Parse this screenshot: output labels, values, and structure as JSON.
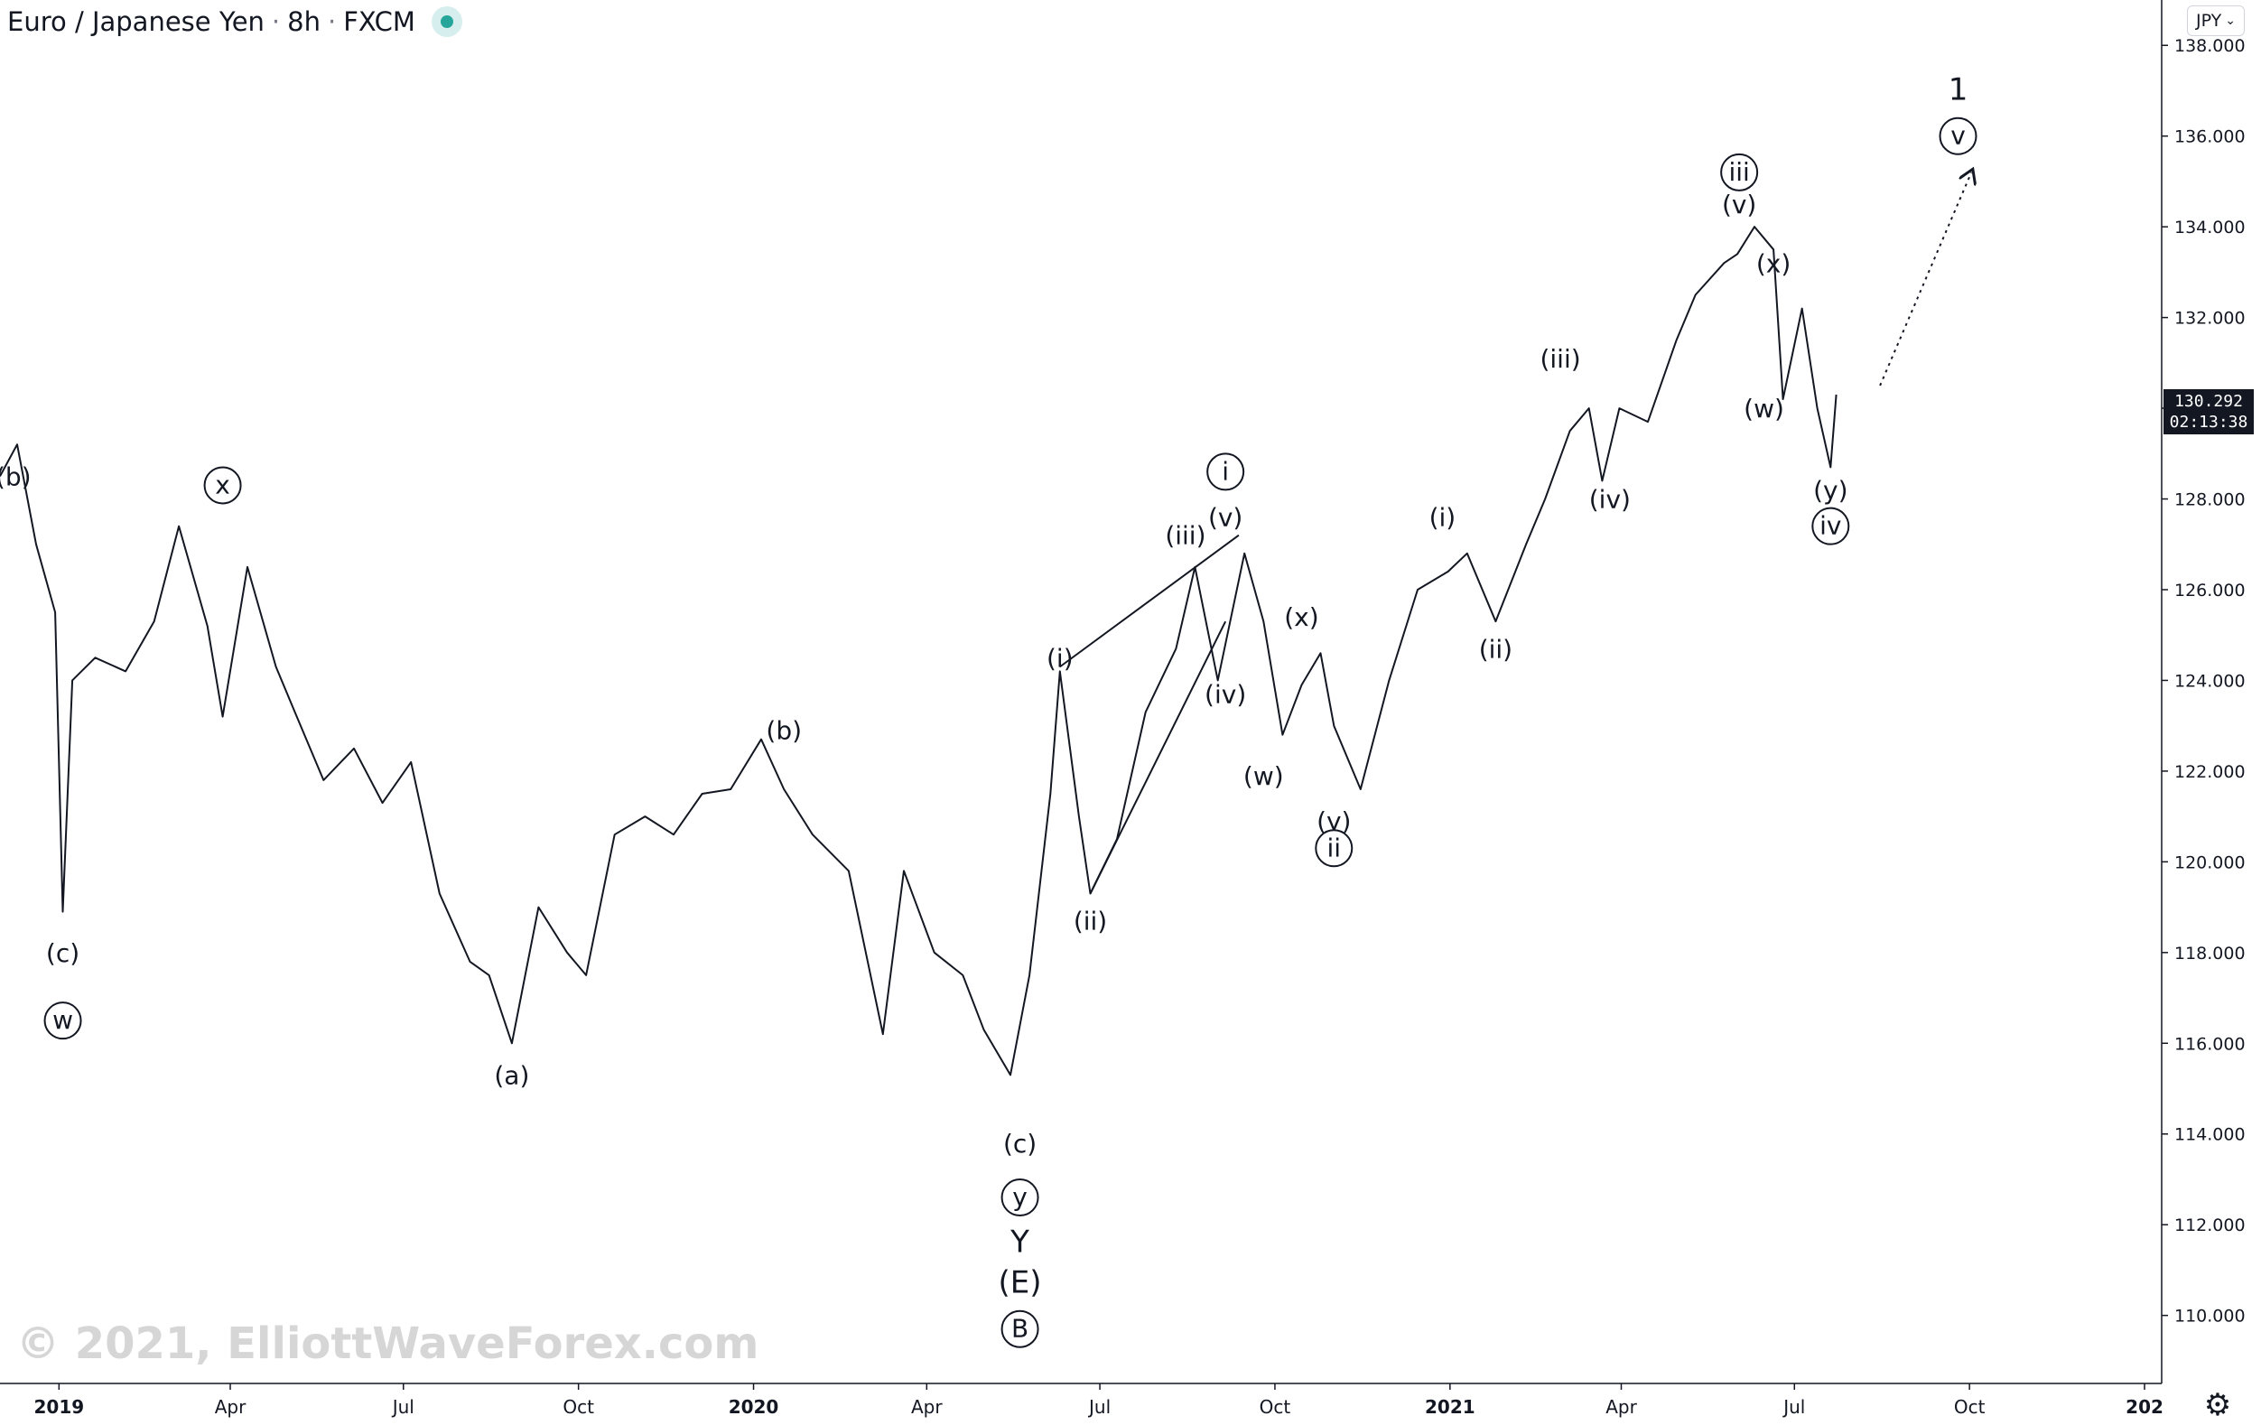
{
  "header": {
    "symbol": "Euro / Japanese Yen",
    "interval": "8h",
    "exchange": "FXCM",
    "separator": "·"
  },
  "currency_button": {
    "label": "JPY",
    "icon": "chevron-down-icon"
  },
  "price_label": {
    "price": "130.292",
    "countdown": "02:13:38"
  },
  "watermark": "© 2021, ElliottWaveForex.com",
  "settings_icon": "gear-icon",
  "colors": {
    "price_line": "#131722",
    "axis_text": "#131722",
    "watermark": "#d6d6d6",
    "live_dot": "#26a69a"
  },
  "chart_data": {
    "type": "line",
    "ylim": [
      108.5,
      139.0
    ],
    "xlim": [
      "2018-12-01",
      "2022-01-10"
    ],
    "y_ticks": [
      "110.000",
      "112.000",
      "114.000",
      "116.000",
      "118.000",
      "120.000",
      "122.000",
      "124.000",
      "126.000",
      "128.000",
      "130.000",
      "132.000",
      "134.000",
      "136.000",
      "138.000"
    ],
    "x_ticks": [
      {
        "date": "2019-01-01",
        "label": "2019"
      },
      {
        "date": "2019-04-01",
        "label": "Apr"
      },
      {
        "date": "2019-07-01",
        "label": "Jul"
      },
      {
        "date": "2019-10-01",
        "label": "Oct"
      },
      {
        "date": "2020-01-01",
        "label": "2020"
      },
      {
        "date": "2020-04-01",
        "label": "Apr"
      },
      {
        "date": "2020-07-01",
        "label": "Jul"
      },
      {
        "date": "2020-10-01",
        "label": "Oct"
      },
      {
        "date": "2021-01-01",
        "label": "2021"
      },
      {
        "date": "2021-04-01",
        "label": "Apr"
      },
      {
        "date": "2021-07-01",
        "label": "Jul"
      },
      {
        "date": "2021-10-01",
        "label": "Oct"
      },
      {
        "date": "2022-01-01",
        "label": "202"
      }
    ],
    "series": [
      {
        "x": [
          "2018-12-01",
          "2018-12-10",
          "2018-12-20",
          "2018-12-30",
          "2019-01-03",
          "2019-01-08",
          "2019-01-20",
          "2019-02-05",
          "2019-02-20",
          "2019-03-05",
          "2019-03-20",
          "2019-03-28",
          "2019-04-10",
          "2019-04-25",
          "2019-05-05",
          "2019-05-20",
          "2019-06-05",
          "2019-06-20",
          "2019-07-05",
          "2019-07-20",
          "2019-08-05",
          "2019-08-15",
          "2019-08-27",
          "2019-09-10",
          "2019-09-25",
          "2019-10-05",
          "2019-10-20",
          "2019-11-05",
          "2019-11-20",
          "2019-12-05",
          "2019-12-20",
          "2020-01-05",
          "2020-01-17",
          "2020-02-01",
          "2020-02-20",
          "2020-03-09",
          "2020-03-20",
          "2020-04-05",
          "2020-04-20",
          "2020-05-01",
          "2020-05-15",
          "2020-05-25",
          "2020-06-05",
          "2020-06-10",
          "2020-06-20",
          "2020-06-26",
          "2020-07-10",
          "2020-07-25",
          "2020-08-10",
          "2020-08-20",
          "2020-09-01",
          "2020-09-15",
          "2020-09-25",
          "2020-10-05",
          "2020-10-15",
          "2020-10-25",
          "2020-11-01",
          "2020-11-15",
          "2020-11-30",
          "2020-12-15",
          "2020-12-31",
          "2021-01-10",
          "2021-01-25",
          "2021-02-10",
          "2021-02-20",
          "2021-03-05",
          "2021-03-15",
          "2021-03-22",
          "2021-03-31",
          "2021-04-15",
          "2021-04-30",
          "2021-05-10",
          "2021-05-25",
          "2021-06-01",
          "2021-06-10",
          "2021-06-20",
          "2021-06-25",
          "2021-07-05",
          "2021-07-13",
          "2021-07-20",
          "2021-07-23"
        ],
        "values": [
          128.5,
          129.2,
          127.0,
          125.5,
          118.9,
          124.0,
          124.5,
          124.2,
          125.3,
          127.4,
          125.2,
          123.2,
          126.5,
          124.3,
          123.3,
          121.8,
          122.5,
          121.3,
          122.2,
          119.3,
          117.8,
          117.5,
          116.0,
          119.0,
          118.0,
          117.5,
          120.6,
          121.0,
          120.6,
          121.5,
          121.6,
          122.7,
          121.6,
          120.6,
          119.8,
          116.2,
          119.8,
          118.0,
          117.5,
          116.3,
          115.3,
          117.5,
          121.5,
          124.2,
          121.0,
          119.3,
          120.5,
          123.3,
          124.7,
          126.5,
          124.0,
          126.8,
          125.3,
          122.8,
          123.9,
          124.6,
          123.0,
          121.6,
          124.0,
          126.0,
          126.4,
          126.8,
          125.3,
          127.0,
          128.0,
          129.5,
          130.0,
          128.4,
          130.0,
          129.7,
          131.5,
          132.5,
          133.2,
          133.4,
          134.0,
          133.5,
          130.2,
          132.2,
          130.0,
          128.7,
          130.3
        ]
      }
    ],
    "annotations": [
      {
        "label": "(b)",
        "x": "2018-12-08",
        "y": 128.5,
        "style": "paren"
      },
      {
        "label": "(c)",
        "x": "2019-01-03",
        "y": 118.0,
        "style": "paren"
      },
      {
        "label": "w",
        "x": "2019-01-03",
        "y": 116.5,
        "style": "circle"
      },
      {
        "label": "x",
        "x": "2019-03-28",
        "y": 128.3,
        "style": "circle"
      },
      {
        "label": "(a)",
        "x": "2019-08-27",
        "y": 115.3,
        "style": "paren"
      },
      {
        "label": "(b)",
        "x": "2020-01-17",
        "y": 122.9,
        "style": "paren"
      },
      {
        "label": "(c)",
        "x": "2020-05-20",
        "y": 113.8,
        "style": "paren"
      },
      {
        "label": "y",
        "x": "2020-05-20",
        "y": 112.6,
        "style": "circle"
      },
      {
        "label": "Y",
        "x": "2020-05-20",
        "y": 111.6,
        "style": "plain"
      },
      {
        "label": "(E)",
        "x": "2020-05-20",
        "y": 110.7,
        "style": "paren-large"
      },
      {
        "label": "B",
        "x": "2020-05-20",
        "y": 109.7,
        "style": "circle"
      },
      {
        "label": "(i)",
        "x": "2020-06-10",
        "y": 124.5,
        "style": "paren"
      },
      {
        "label": "(ii)",
        "x": "2020-06-26",
        "y": 118.7,
        "style": "paren"
      },
      {
        "label": "(iii)",
        "x": "2020-08-15",
        "y": 127.2,
        "style": "paren"
      },
      {
        "label": "(iv)",
        "x": "2020-09-05",
        "y": 123.7,
        "style": "paren"
      },
      {
        "label": "(v)",
        "x": "2020-09-05",
        "y": 127.6,
        "style": "paren"
      },
      {
        "label": "i",
        "x": "2020-09-05",
        "y": 128.6,
        "style": "circle"
      },
      {
        "label": "(w)",
        "x": "2020-09-25",
        "y": 121.9,
        "style": "paren"
      },
      {
        "label": "(x)",
        "x": "2020-10-15",
        "y": 125.4,
        "style": "paren"
      },
      {
        "label": "(y)",
        "x": "2020-11-01",
        "y": 120.9,
        "style": "paren"
      },
      {
        "label": "ii",
        "x": "2020-11-01",
        "y": 120.3,
        "style": "circle"
      },
      {
        "label": "(i)",
        "x": "2020-12-28",
        "y": 127.6,
        "style": "paren"
      },
      {
        "label": "(ii)",
        "x": "2021-01-25",
        "y": 124.7,
        "style": "paren"
      },
      {
        "label": "(iii)",
        "x": "2021-02-28",
        "y": 131.1,
        "style": "paren"
      },
      {
        "label": "(iv)",
        "x": "2021-03-26",
        "y": 128.0,
        "style": "paren"
      },
      {
        "label": "(v)",
        "x": "2021-06-02",
        "y": 134.5,
        "style": "paren"
      },
      {
        "label": "iii",
        "x": "2021-06-02",
        "y": 135.2,
        "style": "circle"
      },
      {
        "label": "(x)",
        "x": "2021-06-20",
        "y": 133.2,
        "style": "paren"
      },
      {
        "label": "(w)",
        "x": "2021-06-15",
        "y": 130.0,
        "style": "paren"
      },
      {
        "label": "(y)",
        "x": "2021-07-20",
        "y": 128.2,
        "style": "paren"
      },
      {
        "label": "iv",
        "x": "2021-07-20",
        "y": 127.4,
        "style": "circle"
      },
      {
        "label": "1",
        "x": "2021-09-25",
        "y": 137.0,
        "style": "plain"
      },
      {
        "label": "v",
        "x": "2021-09-25",
        "y": 136.0,
        "style": "circle"
      }
    ],
    "trendlines": [
      {
        "x1": "2020-06-10",
        "y1": 124.3,
        "x2": "2020-09-12",
        "y2": 127.2,
        "style": "solid"
      },
      {
        "x1": "2020-06-26",
        "y1": 119.3,
        "x2": "2020-09-05",
        "y2": 125.3,
        "style": "solid"
      },
      {
        "x1": "2021-08-15",
        "y1": 130.5,
        "x2": "2021-10-02",
        "y2": 135.2,
        "style": "dotted-arrow"
      }
    ]
  }
}
